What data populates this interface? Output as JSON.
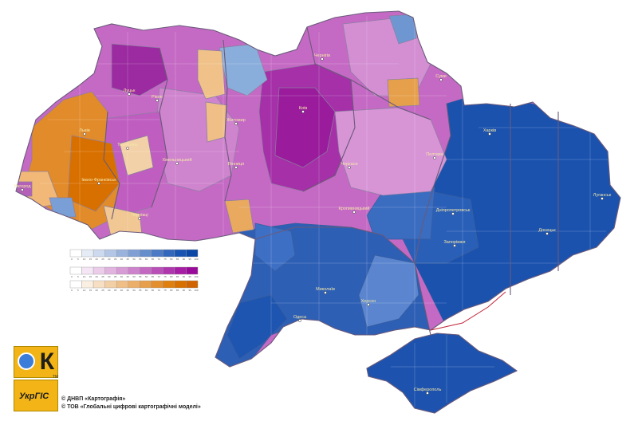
{
  "legend": {
    "ticks": [
      "0",
      "5",
      "10",
      "15",
      "20",
      "25",
      "30",
      "35",
      "40",
      "45",
      "50",
      "55",
      "60",
      "65",
      "70",
      "75",
      "80",
      "85",
      "90",
      "95",
      "100"
    ],
    "scales": [
      {
        "name": "blue",
        "colors": [
          "#ffffff",
          "#e6ecf6",
          "#ccd9ee",
          "#b3c6e6",
          "#99b3dd",
          "#80a0d5",
          "#668dcc",
          "#4d7ac4",
          "#3367bb",
          "#1a54b3",
          "#0a47a6"
        ]
      },
      {
        "name": "purple",
        "colors": [
          "#ffffff",
          "#f5e6f5",
          "#ebcdea",
          "#e1b4e0",
          "#d79bd6",
          "#cd82cc",
          "#c369c2",
          "#b950b8",
          "#af37ae",
          "#a51ea4",
          "#9a0a9a"
        ]
      },
      {
        "name": "orange",
        "colors": [
          "#ffffff",
          "#fbefe1",
          "#f7dfc3",
          "#f3cfa5",
          "#efbf87",
          "#ebaf69",
          "#e79f4b",
          "#e38f2d",
          "#df7f0f",
          "#d87000",
          "#cf6400"
        ]
      }
    ]
  },
  "cities": [
    {
      "name": "Луцьк"
    },
    {
      "name": "Рівне"
    },
    {
      "name": "Житомир"
    },
    {
      "name": "Київ"
    },
    {
      "name": "Чернігів"
    },
    {
      "name": "Суми"
    },
    {
      "name": "Полтава"
    },
    {
      "name": "Харків"
    },
    {
      "name": "Львів"
    },
    {
      "name": "Тернопіль"
    },
    {
      "name": "Хмельницький"
    },
    {
      "name": "Вінниця"
    },
    {
      "name": "Черкаси"
    },
    {
      "name": "Івано-Франківськ"
    },
    {
      "name": "Ужгород"
    },
    {
      "name": "Чернівці"
    },
    {
      "name": "Кропивницький"
    },
    {
      "name": "Дніпропетровськ"
    },
    {
      "name": "Луганськ"
    },
    {
      "name": "Донецьк"
    },
    {
      "name": "Запоріжжя"
    },
    {
      "name": "Миколаїв"
    },
    {
      "name": "Одеса"
    },
    {
      "name": "Херсон"
    },
    {
      "name": "Сімферополь"
    }
  ],
  "copyright": {
    "line1": "© ДНВП «Картографія»",
    "line2": "© ТОВ «Глобальні цифрові картографічні моделі»"
  },
  "logos": {
    "k_letter": "К",
    "ukrgis": "УкрГІС",
    "tm": "TM"
  }
}
